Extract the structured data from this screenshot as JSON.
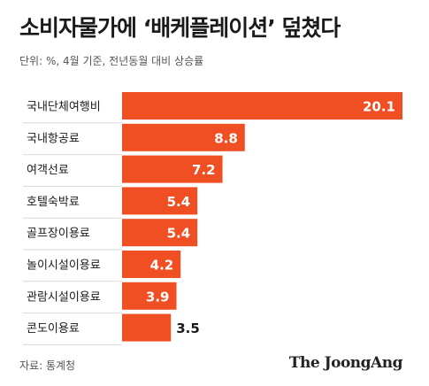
{
  "title": "소비자물가에 ‘배케플레이션’ 덮쳤다",
  "subtitle": "단위: %, 4월 기준, 전년동월 대비 상승률",
  "source": "자료: 통계청",
  "brand": "The JoongAng",
  "colors": {
    "bar": "#f04e23",
    "value_in_bar": "#ffffff",
    "value_out": "#1a1a1a",
    "divider": "#d9d9d9"
  },
  "chart_data": {
    "type": "bar",
    "orientation": "horizontal",
    "categories": [
      "국내단체여행비",
      "국내항공료",
      "여객선료",
      "호텔숙박료",
      "골프장이용료",
      "놀이시설이용료",
      "관람시설이용료",
      "콘도이용료"
    ],
    "values": [
      20.1,
      8.8,
      7.2,
      5.4,
      5.4,
      4.2,
      3.9,
      3.5
    ],
    "data_labels": [
      "20.1",
      "8.8",
      "7.2",
      "5.4",
      "5.4",
      "4.2",
      "3.9",
      "3.5"
    ],
    "title": "소비자물가에 ‘배케플레이션’ 덮쳤다",
    "xlabel": "",
    "ylabel": "",
    "xlim": [
      0,
      20.1
    ],
    "grid": false,
    "legend": "none"
  }
}
